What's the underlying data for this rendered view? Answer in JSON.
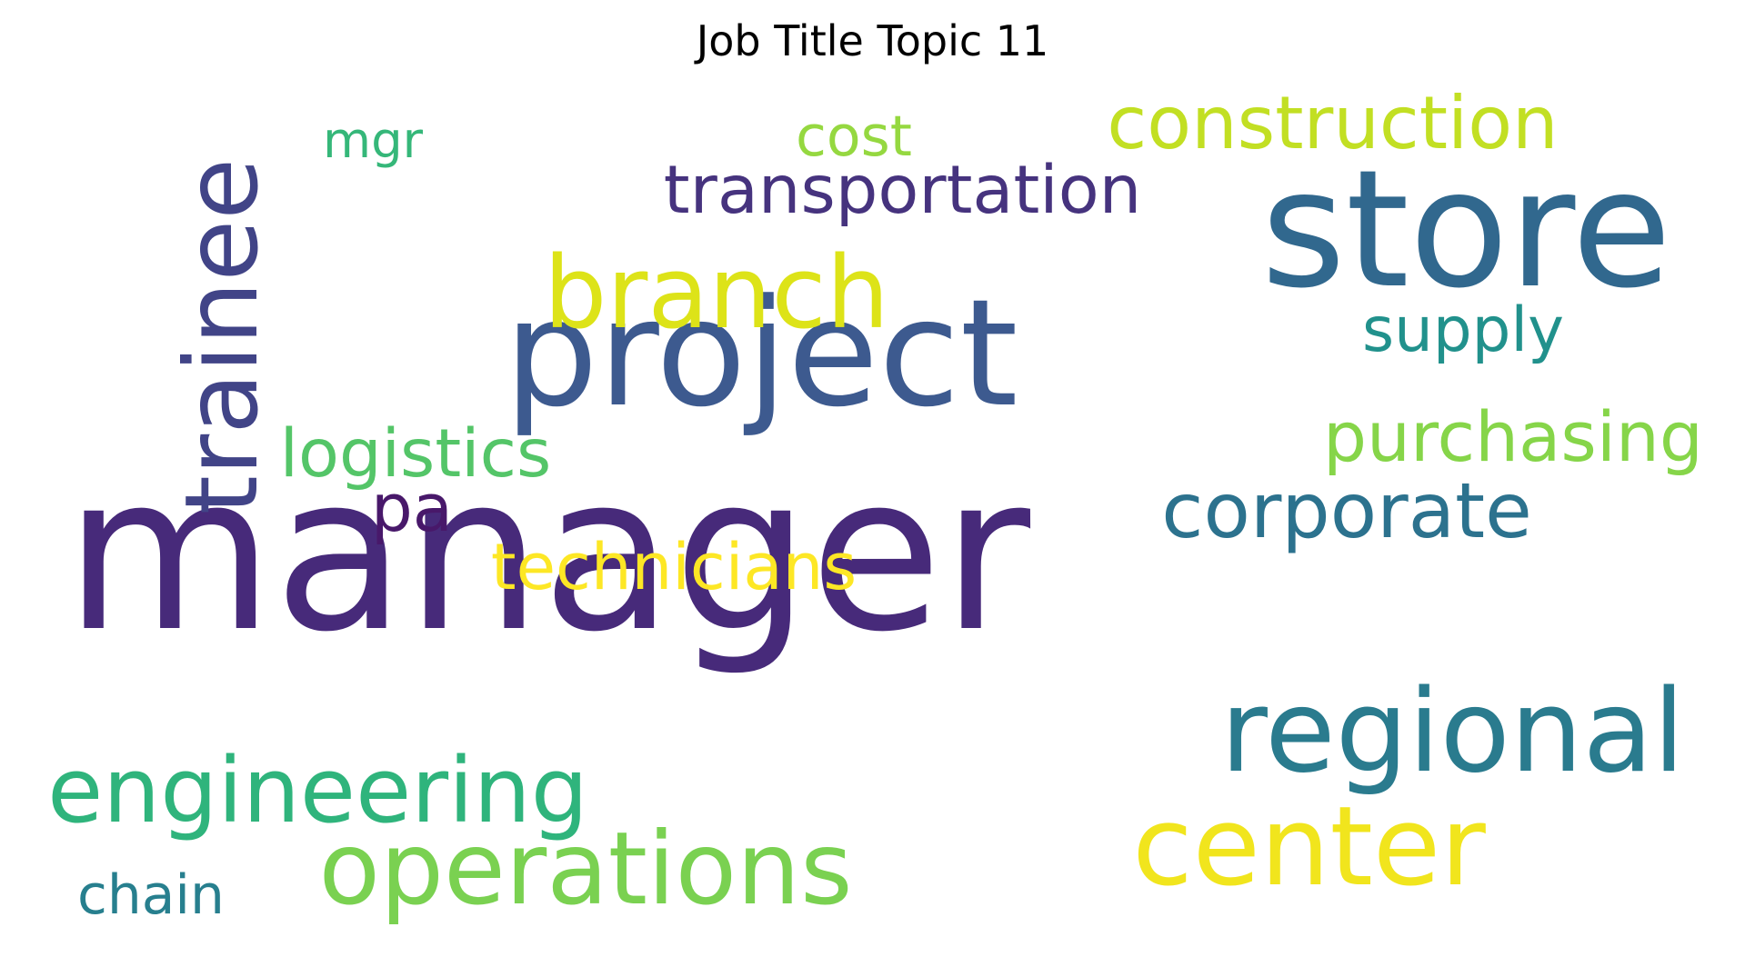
{
  "title": "Job Title Topic 11",
  "words": [
    {
      "id": "manager",
      "text": "manager",
      "color": "#472a7a"
    },
    {
      "id": "project",
      "text": "project",
      "color": "#3d5a8f"
    },
    {
      "id": "store",
      "text": "store",
      "color": "#31688e"
    },
    {
      "id": "trainee",
      "text": "trainee",
      "color": "#414487"
    },
    {
      "id": "branch",
      "text": "branch",
      "color": "#dde318"
    },
    {
      "id": "regional",
      "text": "regional",
      "color": "#2a7b8e"
    },
    {
      "id": "center",
      "text": "center",
      "color": "#f1e51d"
    },
    {
      "id": "operations",
      "text": "operations",
      "color": "#7ad151"
    },
    {
      "id": "engineering",
      "text": "engineering",
      "color": "#2fb47c"
    },
    {
      "id": "construction",
      "text": "construction",
      "color": "#c2df23"
    },
    {
      "id": "transportation",
      "text": "transportation",
      "color": "#46337e"
    },
    {
      "id": "corporate",
      "text": "corporate",
      "color": "#2c728e"
    },
    {
      "id": "purchasing",
      "text": "purchasing",
      "color": "#86d549"
    },
    {
      "id": "logistics",
      "text": "logistics",
      "color": "#54c568"
    },
    {
      "id": "technicians",
      "text": "technicians",
      "color": "#fde725"
    },
    {
      "id": "pa",
      "text": "pa",
      "color": "#48186a"
    },
    {
      "id": "supply",
      "text": "supply",
      "color": "#21918c"
    },
    {
      "id": "mgr",
      "text": "mgr",
      "color": "#35b779"
    },
    {
      "id": "cost",
      "text": "cost",
      "color": "#95d840"
    },
    {
      "id": "chain",
      "text": "chain",
      "color": "#277f8e"
    }
  ]
}
